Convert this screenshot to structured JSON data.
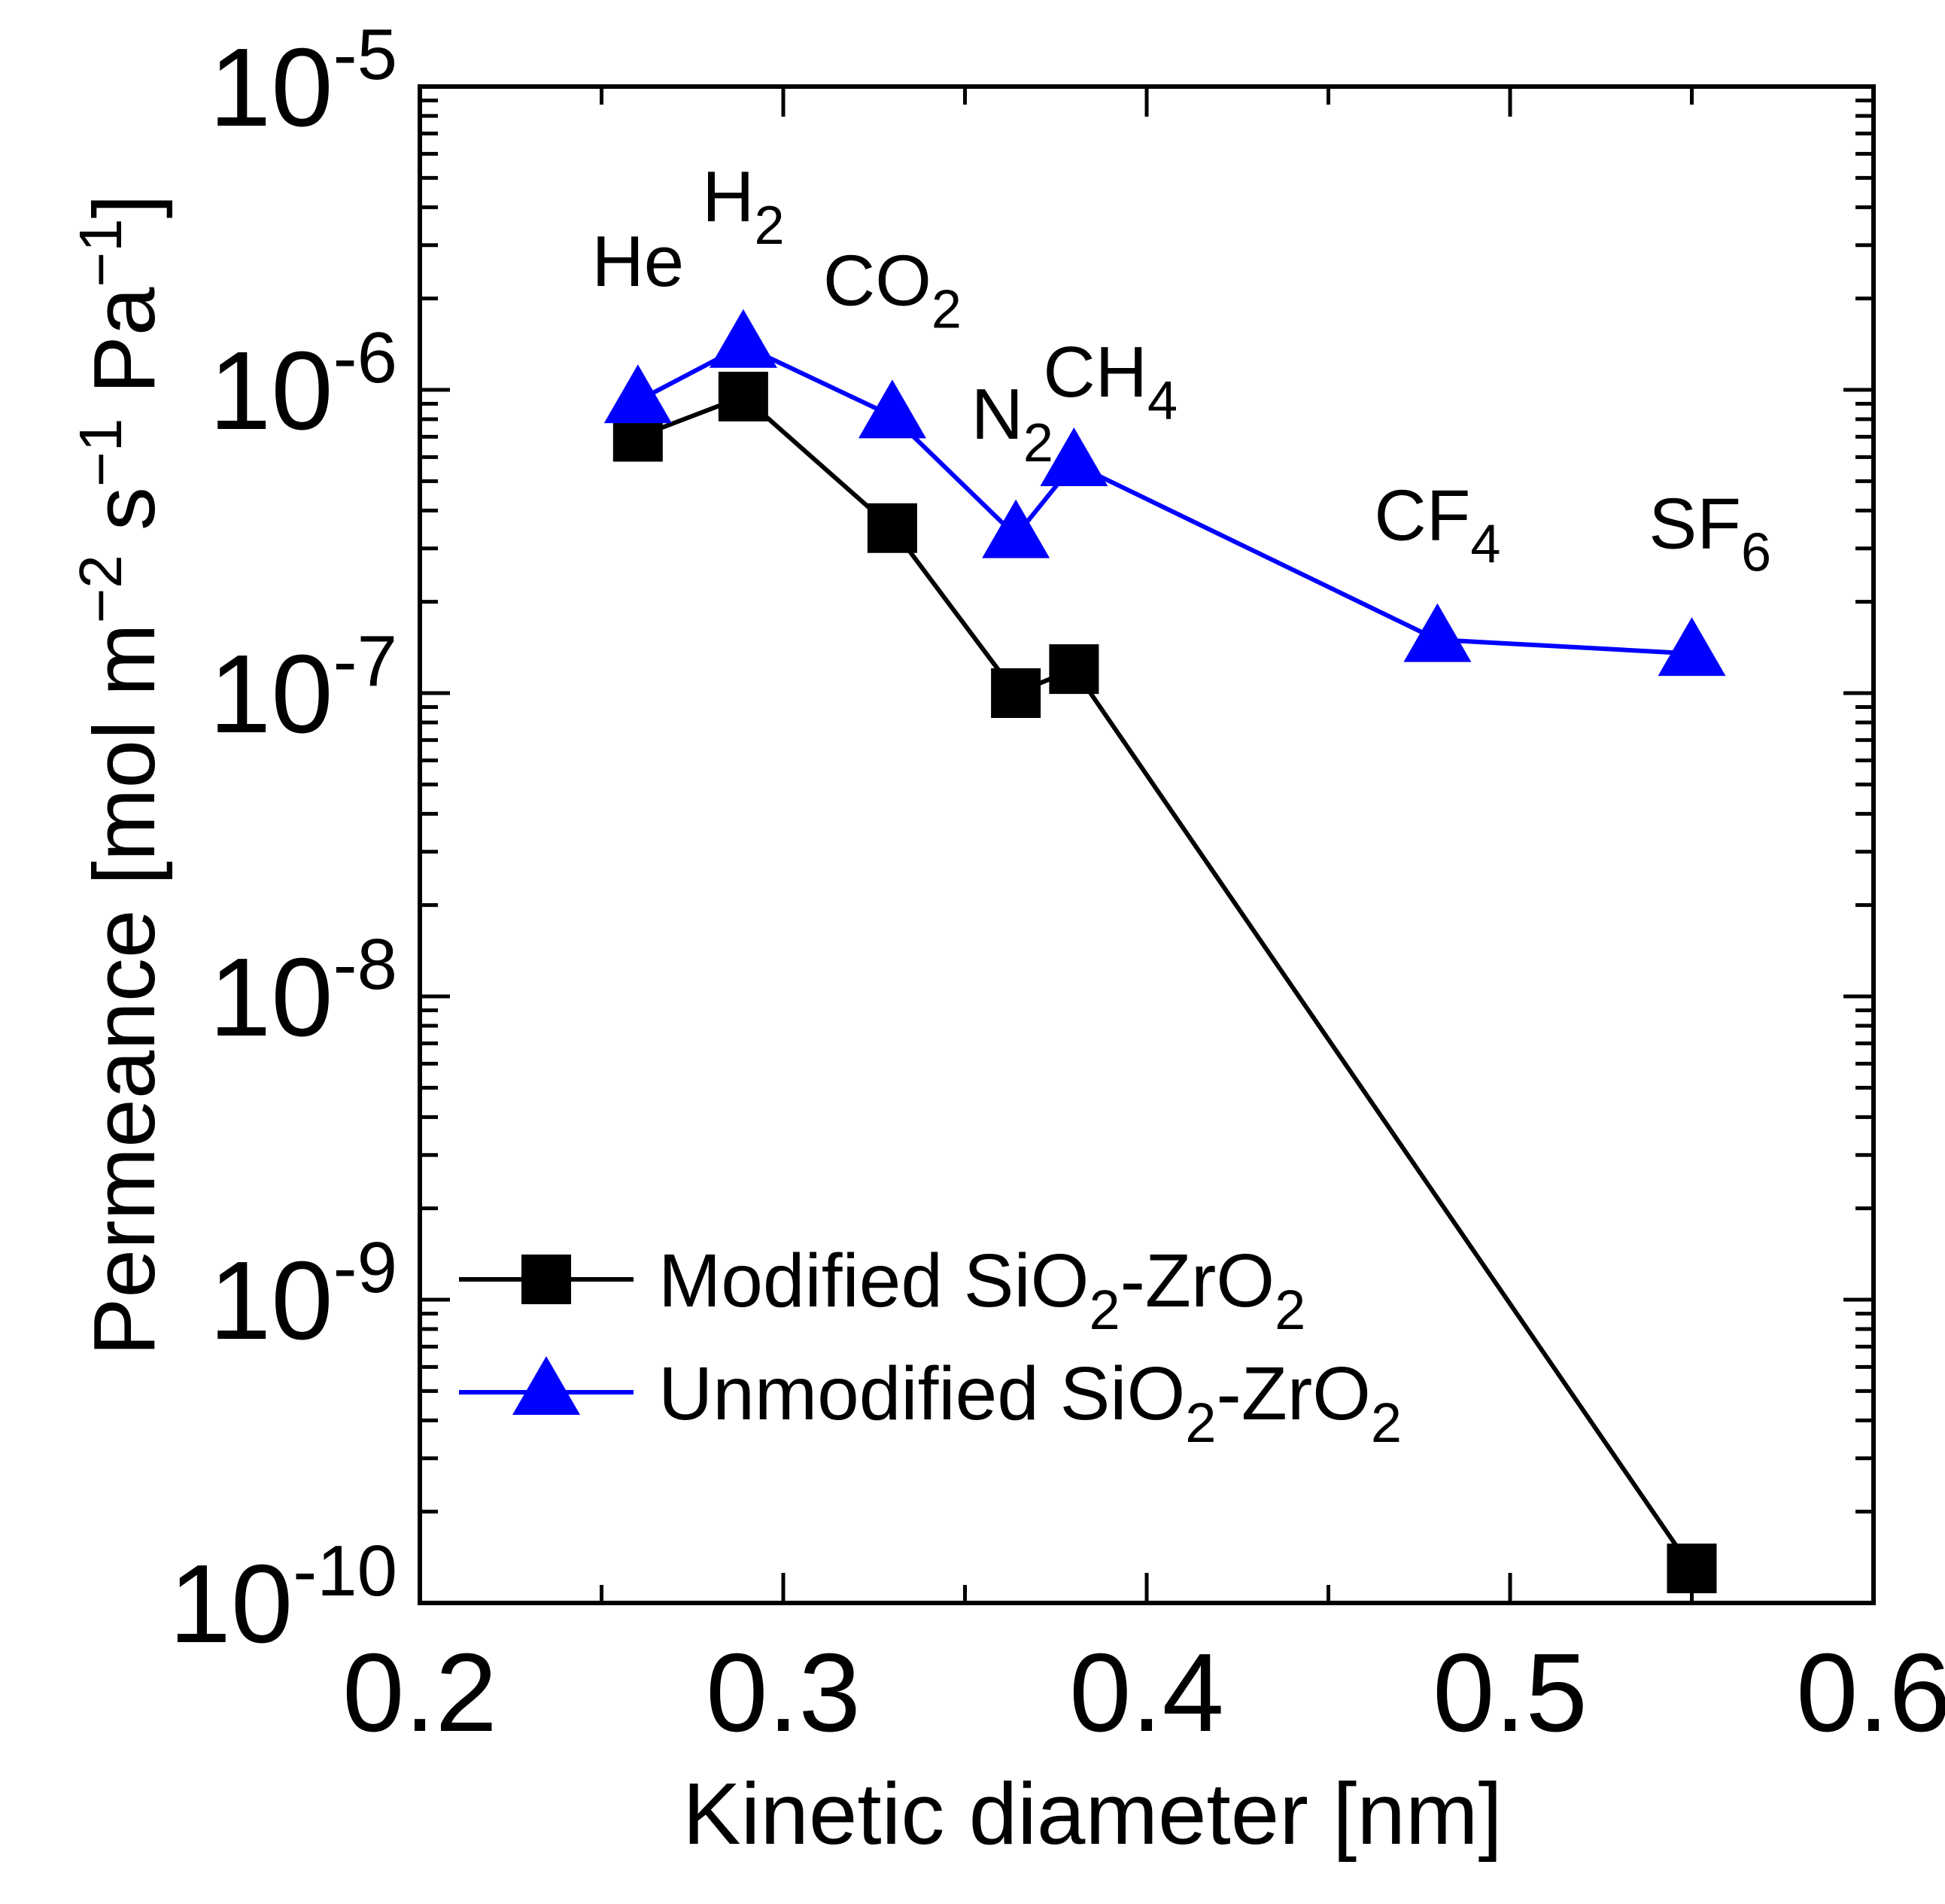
{
  "chart_data": {
    "type": "line",
    "xlabel": "Kinetic diameter [nm]",
    "ylabel": "Permeance [mol m",
    "ylabel_parts": {
      "part1": "Permeance [mol m",
      "exp1": "−2",
      "part2": " s",
      "exp2": "−1",
      "part3": " Pa",
      "exp3": "−1",
      "part4": "]"
    },
    "xlim": [
      0.2,
      0.6
    ],
    "ylim": [
      1e-10,
      1e-05
    ],
    "yscale": "log",
    "x_ticks": [
      {
        "value": 0.2,
        "label": "0.2"
      },
      {
        "value": 0.3,
        "label": "0.3"
      },
      {
        "value": 0.4,
        "label": "0.4"
      },
      {
        "value": 0.5,
        "label": "0.5"
      },
      {
        "value": 0.6,
        "label": "0.6"
      }
    ],
    "y_ticks": [
      {
        "value": 1e-10,
        "base": "10",
        "exp": "-10"
      },
      {
        "value": 1e-09,
        "base": "10",
        "exp": "-9"
      },
      {
        "value": 1e-08,
        "base": "10",
        "exp": "-8"
      },
      {
        "value": 1e-07,
        "base": "10",
        "exp": "-7"
      },
      {
        "value": 1e-06,
        "base": "10",
        "exp": "-6"
      },
      {
        "value": 1e-05,
        "base": "10",
        "exp": "-5"
      }
    ],
    "series": [
      {
        "name": "Modified SiO2-ZrO2",
        "color": "#000000",
        "marker": "square",
        "x": [
          0.26,
          0.289,
          0.33,
          0.364,
          0.38,
          0.55
        ],
        "y": [
          7e-07,
          9.5e-07,
          3.5e-07,
          1e-07,
          1.2e-07,
          1.3e-10
        ]
      },
      {
        "name": "Unmodified SiO2-ZrO2",
        "color": "#0000ff",
        "marker": "triangle",
        "x": [
          0.26,
          0.289,
          0.33,
          0.364,
          0.38,
          0.48,
          0.55
        ],
        "y": [
          9.2e-07,
          1.4e-06,
          8.2e-07,
          3.3e-07,
          5.7e-07,
          1.5e-07,
          1.35e-07
        ]
      }
    ],
    "annotations": [
      {
        "text": "He",
        "sub": "",
        "x": 0.26,
        "y": 2.2e-06
      },
      {
        "text": "H",
        "sub": "2",
        "x": 0.289,
        "y": 3.6e-06
      },
      {
        "text": "CO",
        "sub": "2",
        "x": 0.33,
        "y": 1.9e-06
      },
      {
        "text": "N",
        "sub": "2",
        "x": 0.363,
        "y": 6.9e-07
      },
      {
        "text": "CH",
        "sub": "4",
        "x": 0.39,
        "y": 9.5e-07
      },
      {
        "text": "CF",
        "sub": "4",
        "x": 0.48,
        "y": 3.2e-07
      },
      {
        "text": "SF",
        "sub": "6",
        "x": 0.555,
        "y": 3e-07
      }
    ],
    "legend": {
      "placement": "lower-left",
      "entries": [
        {
          "name_main": "Modified SiO",
          "sub1": "2",
          "mid": "-ZrO",
          "sub2": "2"
        },
        {
          "name_main": "Unmodified SiO",
          "sub1": "2",
          "mid": "-ZrO",
          "sub2": "2"
        }
      ]
    }
  }
}
